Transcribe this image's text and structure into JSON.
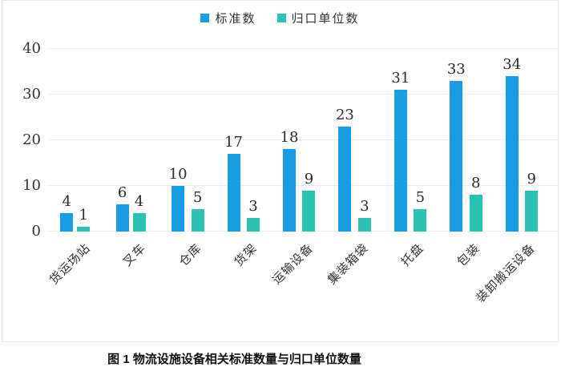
{
  "figure": {
    "caption": "图 1 物流设施设备相关标准数量与归口单位数量"
  },
  "chart_data": {
    "type": "bar",
    "title": "",
    "xlabel": "",
    "ylabel": "",
    "categories": [
      "货运场站",
      "叉车",
      "仓库",
      "货架",
      "运输设备",
      "集装箱袋",
      "托盘",
      "包装",
      "装卸搬运设备"
    ],
    "series": [
      {
        "name": "标准数",
        "color": "#1A9BE6",
        "values": [
          4,
          6,
          10,
          17,
          18,
          23,
          31,
          33,
          34
        ]
      },
      {
        "name": "归口单位数",
        "color": "#2BC2B2",
        "values": [
          1,
          4,
          5,
          3,
          9,
          3,
          5,
          8,
          9
        ]
      }
    ],
    "ylim": [
      0,
      40
    ],
    "yticks": [
      0,
      10,
      20,
      30,
      40
    ],
    "grid": true,
    "legend_position": "top-center",
    "value_labels": true,
    "colors": {
      "gridline": "#ededed",
      "text": "#333333",
      "frame_border": "#e6e6e6"
    }
  }
}
